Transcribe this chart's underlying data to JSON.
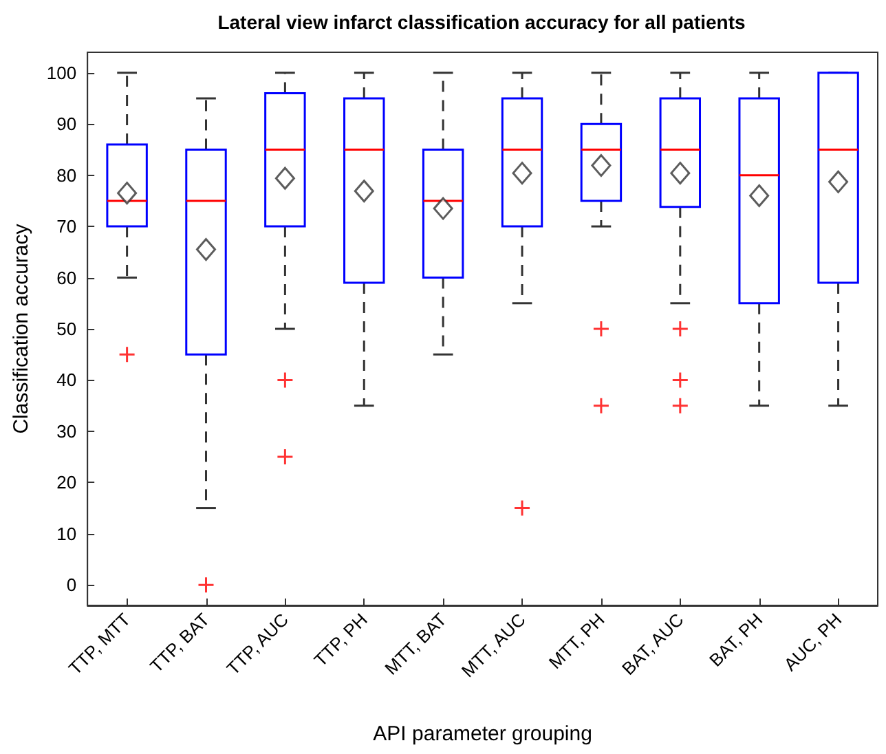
{
  "chart_data": {
    "type": "box",
    "title": "Lateral view infarct classification accuracy for all patients",
    "xlabel": "API parameter grouping",
    "ylabel": "Classification accuracy",
    "categories": [
      "TTP, MTT",
      "TTP, BAT",
      "TTP, AUC",
      "TTP, PH",
      "MTT, BAT",
      "MTT, AUC",
      "MTT, PH",
      "BAT, AUC",
      "BAT, PH",
      "AUC, PH"
    ],
    "color": "#0000ff",
    "boxes": [
      {
        "low": 60,
        "q1": 70,
        "median": 75,
        "q3": 86,
        "high": 100,
        "mean": 76.5,
        "outliers": [
          45
        ]
      },
      {
        "low": 15,
        "q1": 45,
        "median": 75,
        "q3": 85,
        "high": 95,
        "mean": 65.5,
        "outliers": [
          0
        ]
      },
      {
        "low": 50,
        "q1": 70,
        "median": 85,
        "q3": 96,
        "high": 100,
        "mean": 79.4,
        "outliers": [
          40,
          25
        ]
      },
      {
        "low": 35,
        "q1": 59,
        "median": 85,
        "q3": 95,
        "high": 100,
        "mean": 76.9
      },
      {
        "low": 45,
        "q1": 60,
        "median": 75,
        "q3": 85,
        "high": 100,
        "mean": 73.5
      },
      {
        "low": 55,
        "q1": 70,
        "median": 85,
        "q3": 95,
        "high": 100,
        "mean": 80.4,
        "outliers": [
          15
        ]
      },
      {
        "low": 70,
        "q1": 75,
        "median": 85,
        "q3": 90,
        "high": 100,
        "mean": 81.9,
        "outliers": [
          50,
          35
        ]
      },
      {
        "low": 55,
        "q1": 73.8,
        "median": 85,
        "q3": 95,
        "high": 100,
        "mean": 80.4,
        "outliers": [
          50,
          40,
          35
        ]
      },
      {
        "low": 35,
        "q1": 55,
        "median": 80,
        "q3": 95,
        "high": 100,
        "mean": 76
      },
      {
        "low": 35,
        "q1": 59,
        "median": 85,
        "q3": 100,
        "high": 100,
        "mean": 78.7
      }
    ],
    "ylim": [
      -4,
      104
    ],
    "yticks": [
      0,
      10,
      20,
      30,
      40,
      50,
      60,
      70,
      80,
      90,
      100
    ]
  }
}
